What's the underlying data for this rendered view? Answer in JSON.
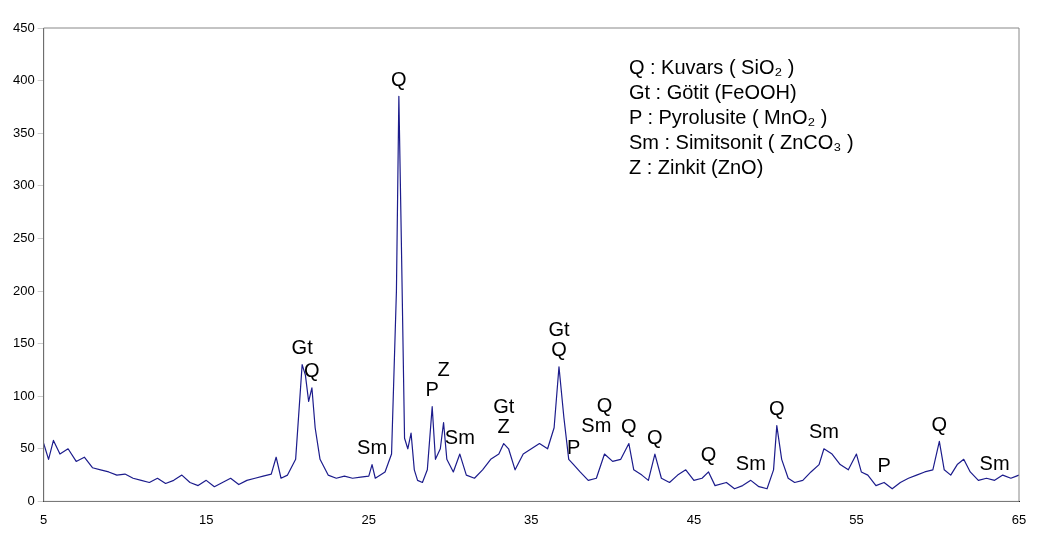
{
  "chart_data": {
    "type": "line",
    "x": [
      5,
      5.3,
      5.6,
      6,
      6.5,
      7,
      7.5,
      8,
      8.5,
      9,
      9.5,
      10,
      10.5,
      11,
      11.5,
      12,
      12.5,
      13,
      13.5,
      14,
      14.5,
      15,
      15.5,
      16,
      16.5,
      17,
      17.5,
      18,
      18.5,
      19,
      19.3,
      19.6,
      20,
      20.5,
      20.9,
      21.1,
      21.3,
      21.5,
      21.7,
      22,
      22.5,
      23,
      23.5,
      24,
      24.5,
      25,
      25.2,
      25.4,
      26,
      26.4,
      26.7,
      26.85,
      27,
      27.2,
      27.4,
      27.6,
      27.8,
      28,
      28.3,
      28.6,
      28.9,
      29.1,
      29.4,
      29.6,
      29.8,
      30.2,
      30.6,
      31,
      31.5,
      32,
      32.5,
      33,
      33.3,
      33.6,
      34,
      34.5,
      35,
      35.5,
      36,
      36.4,
      36.7,
      37,
      37.3,
      37.6,
      38,
      38.5,
      39,
      39.5,
      40,
      40.5,
      41,
      41.3,
      41.8,
      42.2,
      42.6,
      43,
      43.5,
      44,
      44.5,
      45,
      45.5,
      45.9,
      46.3,
      47,
      47.5,
      48,
      48.5,
      49,
      49.5,
      49.9,
      50.1,
      50.4,
      50.8,
      51.2,
      51.7,
      52.2,
      52.7,
      53,
      53.5,
      54,
      54.5,
      55,
      55.3,
      55.7,
      56.2,
      56.7,
      57.2,
      57.7,
      58.2,
      58.7,
      59.2,
      59.7,
      60.1,
      60.4,
      60.8,
      61.2,
      61.6,
      62,
      62.5,
      63,
      63.5,
      64,
      64.5,
      65
    ],
    "series": [
      {
        "color": "#1c1c8c",
        "values": [
          55,
          40,
          58,
          45,
          50,
          38,
          42,
          32,
          30,
          28,
          25,
          26,
          22,
          20,
          18,
          22,
          17,
          20,
          25,
          18,
          15,
          20,
          14,
          18,
          22,
          16,
          20,
          22,
          24,
          26,
          42,
          22,
          25,
          40,
          130,
          120,
          95,
          108,
          70,
          40,
          25,
          22,
          24,
          22,
          23,
          24,
          35,
          22,
          28,
          45,
          200,
          385,
          250,
          60,
          50,
          65,
          30,
          20,
          18,
          30,
          90,
          40,
          50,
          75,
          40,
          28,
          45,
          25,
          22,
          30,
          40,
          45,
          55,
          50,
          30,
          45,
          50,
          55,
          50,
          70,
          128,
          80,
          40,
          35,
          28,
          20,
          22,
          45,
          38,
          40,
          55,
          30,
          25,
          20,
          45,
          22,
          18,
          25,
          30,
          20,
          22,
          28,
          15,
          18,
          12,
          15,
          20,
          14,
          12,
          30,
          72,
          40,
          22,
          18,
          20,
          28,
          35,
          50,
          45,
          35,
          30,
          45,
          28,
          25,
          15,
          18,
          12,
          18,
          22,
          25,
          28,
          30,
          57,
          30,
          25,
          35,
          40,
          28,
          20,
          22,
          20,
          25,
          22,
          25
        ]
      }
    ],
    "xlim": [
      5,
      65
    ],
    "xticks": [
      5,
      15,
      25,
      35,
      45,
      55,
      65
    ],
    "ylim": [
      0,
      450
    ],
    "yticks": [
      0,
      50,
      100,
      150,
      200,
      250,
      300,
      350,
      400,
      450
    ],
    "grid": false,
    "marker": "none",
    "line_style": "solid",
    "annotations": [
      "Q : Kuvars ( SiO₂ )",
      "Gt : Götit (FeOOH)",
      "P : Pyrolusite ( MnO₂ )",
      "Sm : Simitsonit ( ZnCO₃ )",
      "Z : Zinkit (ZnO)",
      {
        "text": "Gt",
        "x": 20.9,
        "y": 130
      },
      {
        "text": "Q",
        "x": 21.5,
        "y": 108
      },
      {
        "text": "Sm",
        "x": 25.2,
        "y": 35
      },
      {
        "text": "Q",
        "x": 26.85,
        "y": 385
      },
      {
        "text": "P",
        "x": 28.9,
        "y": 90
      },
      {
        "text": "Z",
        "x": 29.6,
        "y": 75
      },
      {
        "text": "Sm",
        "x": 30.6,
        "y": 45
      },
      {
        "text": "Z",
        "x": 33.3,
        "y": 55
      },
      {
        "text": "Gt",
        "x": 33.3,
        "y": 55
      },
      {
        "text": "Q",
        "x": 36.7,
        "y": 128
      },
      {
        "text": "Gt",
        "x": 36.7,
        "y": 128
      },
      {
        "text": "P",
        "x": 37.6,
        "y": 35
      },
      {
        "text": "Sm",
        "x": 39,
        "y": 22
      },
      {
        "text": "Q",
        "x": 39.5,
        "y": 45
      },
      {
        "text": "Q",
        "x": 41,
        "y": 55
      },
      {
        "text": "Q",
        "x": 42.6,
        "y": 45
      },
      {
        "text": "Q",
        "x": 45.9,
        "y": 28
      },
      {
        "text": "Sm",
        "x": 48.5,
        "y": 20
      },
      {
        "text": "Q",
        "x": 50.1,
        "y": 72
      },
      {
        "text": "Sm",
        "x": 53,
        "y": 50
      },
      {
        "text": "P",
        "x": 56.7,
        "y": 18
      },
      {
        "text": "Q",
        "x": 60.1,
        "y": 57
      },
      {
        "text": "Sm",
        "x": 63.5,
        "y": 20
      }
    ]
  }
}
